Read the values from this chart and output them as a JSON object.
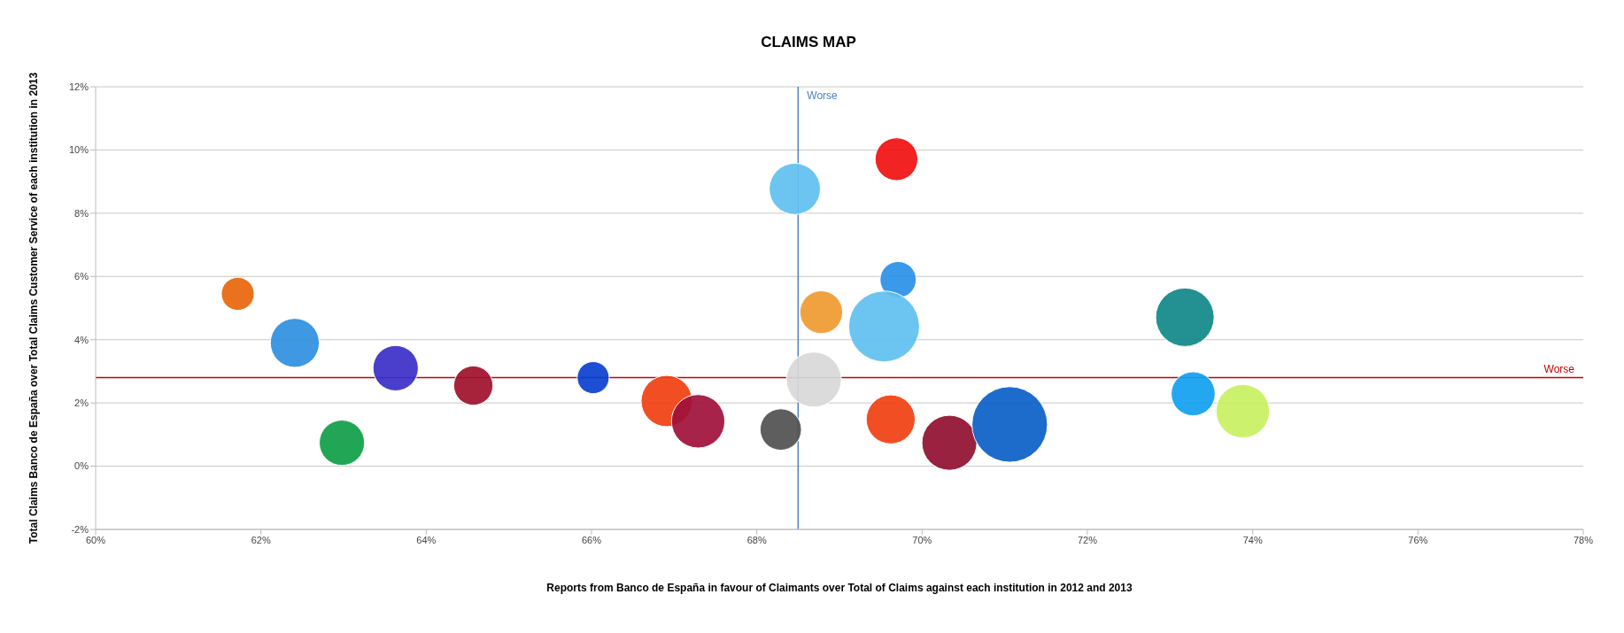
{
  "chart_data": {
    "type": "bubble",
    "title": "CLAIMS MAP",
    "xlabel": "Reports from Banco de España in favour of Claimants over Total of Claims against each institution in 2012 and 2013",
    "ylabel": "Total Claims Banco de España over Total Claims Customer Service of each institution in 2013",
    "x": [
      61.72,
      62.41,
      62.98,
      63.63,
      64.57,
      66.02,
      66.91,
      67.29,
      68.29,
      68.46,
      68.78,
      68.69,
      69.69,
      69.71,
      69.54,
      69.62,
      70.33,
      71.06,
      73.18,
      73.28,
      73.88
    ],
    "values": [
      5.45,
      3.9,
      0.74,
      3.1,
      2.55,
      2.8,
      2.06,
      1.42,
      1.16,
      8.77,
      4.87,
      2.74,
      9.71,
      5.9,
      4.42,
      1.48,
      0.74,
      1.32,
      4.71,
      2.29,
      1.74
    ],
    "sizes": [
      0.19,
      0.42,
      0.36,
      0.36,
      0.27,
      0.18,
      0.46,
      0.5,
      0.3,
      0.46,
      0.32,
      0.53,
      0.32,
      0.23,
      0.88,
      0.42,
      0.53,
      1,
      0.6,
      0.34,
      0.5
    ],
    "colors": [
      "#e8650a",
      "#2e8fe0",
      "#0e9e48",
      "#3a2fc8",
      "#a0102a",
      "#0a3fd0",
      "#f04010",
      "#a0103a",
      "#505050",
      "#60c0f0",
      "#f09a30",
      "#d8d8d8",
      "#f01010",
      "#2a90e8",
      "#60c0f0",
      "#f04010",
      "#900f30",
      "#0a60c8",
      "#108888",
      "#10a0f0",
      "#c8f060"
    ],
    "xlim": [
      60,
      78
    ],
    "xticks": [
      {
        "value": 60,
        "label": "60%"
      },
      {
        "value": 62,
        "label": "62%"
      },
      {
        "value": 64,
        "label": "64%"
      },
      {
        "value": 66,
        "label": "66%"
      },
      {
        "value": 68,
        "label": "68%"
      },
      {
        "value": 70,
        "label": "70%"
      },
      {
        "value": 72,
        "label": "72%"
      },
      {
        "value": 74,
        "label": "74%"
      },
      {
        "value": 76,
        "label": "76%"
      },
      {
        "value": 78,
        "label": "78%"
      }
    ],
    "ylim": [
      -2,
      12
    ],
    "yticks": [
      {
        "value": -2,
        "label": "-2%"
      },
      {
        "value": 0,
        "label": "0%"
      },
      {
        "value": 2,
        "label": "2%"
      },
      {
        "value": 4,
        "label": "4%"
      },
      {
        "value": 6,
        "label": "6%"
      },
      {
        "value": 8,
        "label": "8%"
      },
      {
        "value": 10,
        "label": "10%"
      },
      {
        "value": 12,
        "label": "12%"
      }
    ],
    "grid": "y",
    "ref_lines": [
      {
        "axis": "x",
        "value": 68.5,
        "label": "Worse",
        "color": "#4a7fc0"
      },
      {
        "axis": "y",
        "value": 2.8,
        "label": "Worse",
        "color": "#c00000"
      }
    ]
  }
}
